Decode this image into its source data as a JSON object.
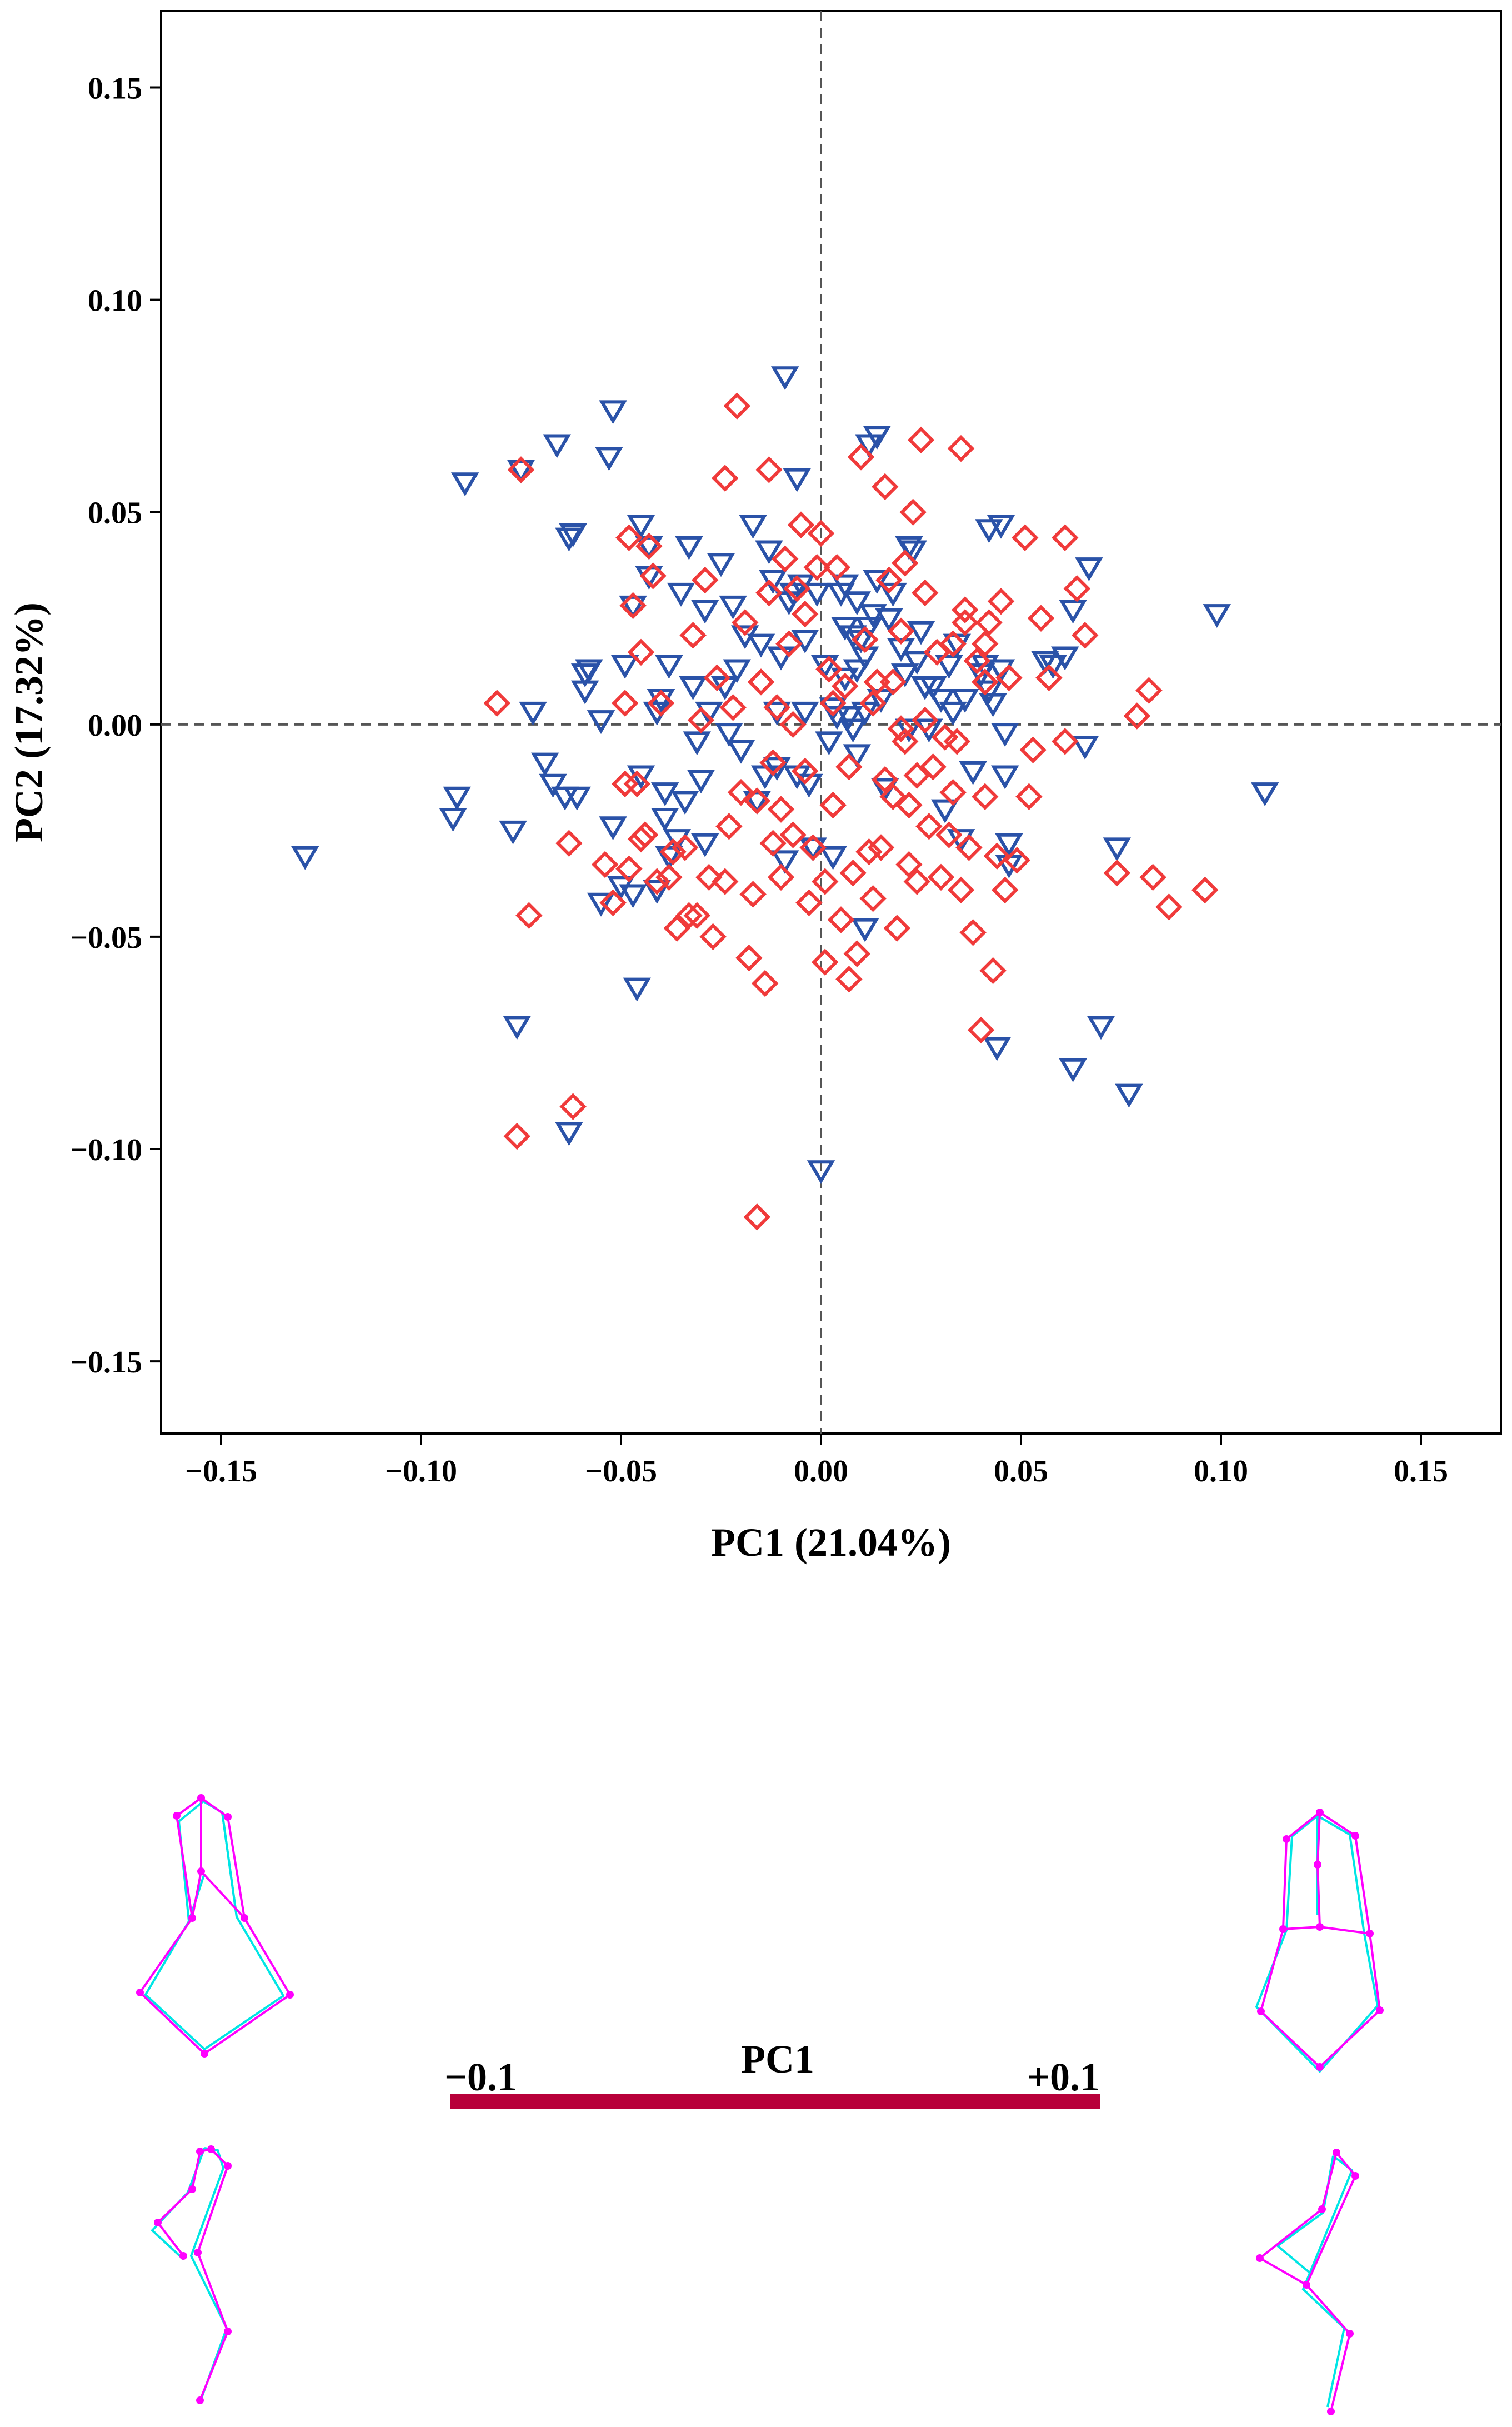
{
  "colors": {
    "group_a": "#2a52a8",
    "group_b": "#f03a3a",
    "bar": "#b8003a",
    "shape_a": "#ff00ff",
    "shape_b": "#00e5e5",
    "axis": "#000000",
    "refline": "#555555"
  },
  "chart_data": {
    "type": "scatter",
    "title": "",
    "xlabel": "PC1 (21.04%)",
    "ylabel": "PC2 (17.32%)",
    "xlim": [
      -0.165,
      0.17
    ],
    "ylim": [
      -0.167,
      0.168
    ],
    "xticks": [
      -0.15,
      -0.1,
      -0.05,
      0.0,
      0.05,
      0.1,
      0.15
    ],
    "yticks": [
      -0.15,
      -0.1,
      -0.05,
      0.0,
      0.05,
      0.1,
      0.15
    ],
    "xtick_labels": [
      "−0.15",
      "−0.10",
      "−0.05",
      "0.00",
      "0.05",
      "0.10",
      "0.15"
    ],
    "ytick_labels": [
      "−0.15",
      "−0.10",
      "−0.05",
      "0.00",
      "0.05",
      "0.10",
      "0.15"
    ],
    "reference_lines": {
      "x": 0,
      "y": 0
    },
    "grid": false,
    "legend": "none",
    "series": [
      {
        "marker": "triangle-down",
        "color": "#2a52a8",
        "points": [
          [
            -0.129,
            -0.031
          ],
          [
            -0.091,
            -0.017
          ],
          [
            -0.092,
            -0.022
          ],
          [
            -0.089,
            0.057
          ],
          [
            -0.077,
            -0.025
          ],
          [
            -0.076,
            -0.071
          ],
          [
            -0.075,
            0.06
          ],
          [
            -0.072,
            0.003
          ],
          [
            -0.069,
            -0.009
          ],
          [
            -0.067,
            -0.014
          ],
          [
            -0.066,
            0.066
          ],
          [
            -0.064,
            -0.017
          ],
          [
            -0.063,
            -0.096
          ],
          [
            -0.063,
            0.044
          ],
          [
            -0.062,
            0.045
          ],
          [
            -0.061,
            -0.017
          ],
          [
            -0.059,
            0.012
          ],
          [
            -0.059,
            0.008
          ],
          [
            -0.058,
            0.013
          ],
          [
            -0.055,
            0.001
          ],
          [
            -0.055,
            -0.042
          ],
          [
            -0.053,
            0.063
          ],
          [
            -0.052,
            -0.024
          ],
          [
            -0.052,
            0.074
          ],
          [
            -0.05,
            -0.038
          ],
          [
            -0.049,
            0.014
          ],
          [
            -0.047,
            0.028
          ],
          [
            -0.047,
            -0.04
          ],
          [
            -0.046,
            -0.062
          ],
          [
            -0.045,
            0.047
          ],
          [
            -0.045,
            -0.012
          ],
          [
            -0.043,
            0.035
          ],
          [
            -0.043,
            0.042
          ],
          [
            -0.041,
            0.003
          ],
          [
            -0.041,
            -0.039
          ],
          [
            -0.04,
            0.006
          ],
          [
            -0.039,
            -0.016
          ],
          [
            -0.039,
            -0.022
          ],
          [
            -0.038,
            0.014
          ],
          [
            -0.038,
            -0.031
          ],
          [
            -0.036,
            -0.027
          ],
          [
            -0.035,
            0.031
          ],
          [
            -0.034,
            -0.018
          ],
          [
            -0.033,
            0.042
          ],
          [
            -0.032,
            0.009
          ],
          [
            -0.031,
            -0.004
          ],
          [
            -0.03,
            -0.013
          ],
          [
            -0.029,
            0.027
          ],
          [
            -0.029,
            -0.028
          ],
          [
            -0.028,
            0.003
          ],
          [
            -0.025,
            0.038
          ],
          [
            -0.024,
            0.009
          ],
          [
            -0.023,
            -0.002
          ],
          [
            -0.022,
            0.028
          ],
          [
            -0.021,
            0.013
          ],
          [
            -0.02,
            -0.006
          ],
          [
            -0.019,
            0.021
          ],
          [
            -0.017,
            0.047
          ],
          [
            -0.016,
            -0.018
          ],
          [
            -0.015,
            0.019
          ],
          [
            -0.014,
            -0.012
          ],
          [
            -0.013,
            0.041
          ],
          [
            -0.012,
            0.034
          ],
          [
            -0.011,
            -0.01
          ],
          [
            -0.011,
            0.003
          ],
          [
            -0.01,
            0.016
          ],
          [
            -0.009,
            -0.032
          ],
          [
            -0.009,
            0.082
          ],
          [
            -0.008,
            0.029
          ],
          [
            -0.007,
            0.031
          ],
          [
            -0.006,
            -0.012
          ],
          [
            -0.006,
            0.058
          ],
          [
            -0.005,
            0.033
          ],
          [
            -0.004,
            0.02
          ],
          [
            -0.004,
            0.003
          ],
          [
            -0.003,
            -0.014
          ],
          [
            -0.002,
            -0.029
          ],
          [
            -0.001,
            0.031
          ],
          [
            0.0,
            -0.105
          ],
          [
            0.001,
            0.014
          ],
          [
            0.002,
            -0.004
          ],
          [
            0.003,
            0.004
          ],
          [
            0.003,
            -0.031
          ],
          [
            0.004,
            0.002
          ],
          [
            0.005,
            0.031
          ],
          [
            0.006,
            0.023
          ],
          [
            0.006,
            0.011
          ],
          [
            0.006,
            0.033
          ],
          [
            0.007,
            0.002
          ],
          [
            0.008,
            -0.001
          ],
          [
            0.008,
            0.021
          ],
          [
            0.009,
            -0.007
          ],
          [
            0.009,
            0.013
          ],
          [
            0.009,
            0.029
          ],
          [
            0.01,
            0.02
          ],
          [
            0.011,
            -0.048
          ],
          [
            0.011,
            0.003
          ],
          [
            0.011,
            0.016
          ],
          [
            0.012,
            0.023
          ],
          [
            0.012,
            0.066
          ],
          [
            0.013,
            0.026
          ],
          [
            0.014,
            0.034
          ],
          [
            0.014,
            0.068
          ],
          [
            0.015,
            0.006
          ],
          [
            0.016,
            -0.015
          ],
          [
            0.017,
            0.025
          ],
          [
            0.018,
            0.031
          ],
          [
            0.02,
            0.018
          ],
          [
            0.021,
            0.012
          ],
          [
            0.022,
            0.042
          ],
          [
            0.022,
            -0.001
          ],
          [
            0.023,
            0.041
          ],
          [
            0.024,
            0.015
          ],
          [
            0.025,
            0.022
          ],
          [
            0.026,
            0.009
          ],
          [
            0.027,
            -0.001
          ],
          [
            0.028,
            0.009
          ],
          [
            0.03,
            0.006
          ],
          [
            0.031,
            -0.02
          ],
          [
            0.032,
            0.014
          ],
          [
            0.033,
            0.003
          ],
          [
            0.034,
            0.019
          ],
          [
            0.035,
            -0.027
          ],
          [
            0.036,
            0.006
          ],
          [
            0.038,
            -0.011
          ],
          [
            0.04,
            0.012
          ],
          [
            0.041,
            0.014
          ],
          [
            0.042,
            0.008
          ],
          [
            0.042,
            0.046
          ],
          [
            0.043,
            0.005
          ],
          [
            0.044,
            -0.076
          ],
          [
            0.045,
            0.047
          ],
          [
            0.045,
            0.013
          ],
          [
            0.046,
            -0.012
          ],
          [
            0.046,
            -0.002
          ],
          [
            0.047,
            -0.028
          ],
          [
            0.047,
            -0.033
          ],
          [
            0.056,
            0.015
          ],
          [
            0.058,
            0.014
          ],
          [
            0.061,
            0.016
          ],
          [
            0.063,
            -0.081
          ],
          [
            0.063,
            0.027
          ],
          [
            0.066,
            -0.005
          ],
          [
            0.067,
            0.037
          ],
          [
            0.07,
            -0.071
          ],
          [
            0.074,
            -0.029
          ],
          [
            0.077,
            -0.087
          ],
          [
            0.099,
            0.026
          ],
          [
            0.111,
            -0.016
          ]
        ]
      },
      {
        "marker": "diamond",
        "color": "#f03a3a",
        "points": [
          [
            -0.081,
            0.005
          ],
          [
            -0.076,
            -0.097
          ],
          [
            -0.075,
            0.06
          ],
          [
            -0.073,
            -0.045
          ],
          [
            -0.063,
            -0.028
          ],
          [
            -0.062,
            -0.09
          ],
          [
            -0.054,
            -0.033
          ],
          [
            -0.052,
            -0.042
          ],
          [
            -0.049,
            0.005
          ],
          [
            -0.049,
            -0.014
          ],
          [
            -0.048,
            0.044
          ],
          [
            -0.048,
            -0.034
          ],
          [
            -0.046,
            -0.014
          ],
          [
            -0.047,
            0.028
          ],
          [
            -0.045,
            -0.027
          ],
          [
            -0.045,
            0.017
          ],
          [
            -0.044,
            -0.026
          ],
          [
            -0.043,
            0.042
          ],
          [
            -0.042,
            0.035
          ],
          [
            -0.041,
            -0.037
          ],
          [
            -0.04,
            0.005
          ],
          [
            -0.038,
            -0.036
          ],
          [
            -0.037,
            -0.03
          ],
          [
            -0.036,
            -0.048
          ],
          [
            -0.034,
            -0.029
          ],
          [
            -0.033,
            -0.045
          ],
          [
            -0.032,
            0.021
          ],
          [
            -0.031,
            -0.045
          ],
          [
            -0.03,
            0.001
          ],
          [
            -0.029,
            0.034
          ],
          [
            -0.028,
            -0.036
          ],
          [
            -0.027,
            -0.05
          ],
          [
            -0.026,
            0.011
          ],
          [
            -0.024,
            -0.037
          ],
          [
            -0.024,
            0.058
          ],
          [
            -0.023,
            -0.024
          ],
          [
            -0.022,
            0.004
          ],
          [
            -0.021,
            0.075
          ],
          [
            -0.02,
            -0.016
          ],
          [
            -0.019,
            0.024
          ],
          [
            -0.018,
            -0.055
          ],
          [
            -0.017,
            -0.04
          ],
          [
            -0.016,
            -0.116
          ],
          [
            -0.016,
            -0.018
          ],
          [
            -0.015,
            0.01
          ],
          [
            -0.014,
            -0.061
          ],
          [
            -0.013,
            0.031
          ],
          [
            -0.013,
            0.06
          ],
          [
            -0.012,
            -0.009
          ],
          [
            -0.012,
            -0.028
          ],
          [
            -0.011,
            0.004
          ],
          [
            -0.01,
            -0.02
          ],
          [
            -0.01,
            -0.036
          ],
          [
            -0.009,
            0.039
          ],
          [
            -0.008,
            0.019
          ],
          [
            -0.007,
            0.0
          ],
          [
            -0.007,
            -0.026
          ],
          [
            -0.006,
            0.032
          ],
          [
            -0.005,
            0.047
          ],
          [
            -0.004,
            0.026
          ],
          [
            -0.004,
            -0.011
          ],
          [
            -0.003,
            -0.042
          ],
          [
            -0.002,
            -0.029
          ],
          [
            -0.001,
            0.037
          ],
          [
            0.0,
            0.045
          ],
          [
            0.001,
            -0.037
          ],
          [
            0.001,
            -0.056
          ],
          [
            0.002,
            0.013
          ],
          [
            0.003,
            -0.019
          ],
          [
            0.003,
            0.005
          ],
          [
            0.004,
            0.037
          ],
          [
            0.005,
            -0.046
          ],
          [
            0.006,
            0.009
          ],
          [
            0.007,
            -0.01
          ],
          [
            0.007,
            -0.06
          ],
          [
            0.008,
            -0.035
          ],
          [
            0.009,
            -0.054
          ],
          [
            0.01,
            0.063
          ],
          [
            0.011,
            0.02
          ],
          [
            0.012,
            -0.03
          ],
          [
            0.013,
            0.005
          ],
          [
            0.013,
            -0.041
          ],
          [
            0.014,
            0.01
          ],
          [
            0.015,
            -0.029
          ],
          [
            0.016,
            0.056
          ],
          [
            0.016,
            -0.013
          ],
          [
            0.017,
            0.034
          ],
          [
            0.018,
            -0.017
          ],
          [
            0.018,
            0.01
          ],
          [
            0.019,
            -0.048
          ],
          [
            0.02,
            0.022
          ],
          [
            0.021,
            -0.004
          ],
          [
            0.021,
            0.038
          ],
          [
            0.022,
            -0.019
          ],
          [
            0.022,
            -0.033
          ],
          [
            0.023,
            0.05
          ],
          [
            0.024,
            -0.012
          ],
          [
            0.024,
            -0.037
          ],
          [
            0.025,
            0.067
          ],
          [
            0.026,
            0.031
          ],
          [
            0.026,
            0.001
          ],
          [
            0.027,
            -0.024
          ],
          [
            0.028,
            -0.01
          ],
          [
            0.029,
            0.017
          ],
          [
            0.03,
            -0.036
          ],
          [
            0.031,
            -0.003
          ],
          [
            0.032,
            -0.026
          ],
          [
            0.033,
            0.019
          ],
          [
            0.033,
            -0.016
          ],
          [
            0.034,
            -0.004
          ],
          [
            0.035,
            0.065
          ],
          [
            0.035,
            -0.039
          ],
          [
            0.036,
            0.024
          ],
          [
            0.037,
            -0.029
          ],
          [
            0.038,
            -0.049
          ],
          [
            0.039,
            0.015
          ],
          [
            0.04,
            -0.072
          ],
          [
            0.041,
            0.01
          ],
          [
            0.041,
            -0.017
          ],
          [
            0.042,
            0.024
          ],
          [
            0.043,
            -0.058
          ],
          [
            0.044,
            -0.031
          ],
          [
            0.045,
            0.029
          ],
          [
            0.046,
            -0.039
          ],
          [
            0.047,
            0.011
          ],
          [
            0.049,
            -0.032
          ],
          [
            0.051,
            0.044
          ],
          [
            0.052,
            -0.017
          ],
          [
            0.053,
            -0.006
          ],
          [
            0.055,
            0.025
          ],
          [
            0.057,
            0.011
          ],
          [
            0.061,
            0.044
          ],
          [
            0.064,
            0.032
          ],
          [
            0.066,
            0.021
          ],
          [
            0.074,
            -0.035
          ],
          [
            0.079,
            0.002
          ],
          [
            0.082,
            0.008
          ],
          [
            0.083,
            -0.036
          ],
          [
            0.087,
            -0.043
          ],
          [
            0.096,
            -0.039
          ],
          [
            0.061,
            -0.004
          ],
          [
            0.02,
            -0.001
          ],
          [
            0.036,
            0.027
          ],
          [
            0.041,
            0.019
          ]
        ]
      }
    ]
  },
  "legend_bar": {
    "label": "PC1",
    "min_label": "−0.1",
    "max_label": "+0.1"
  },
  "wireframes": {
    "group_a_name": "",
    "group_b_name": ""
  }
}
